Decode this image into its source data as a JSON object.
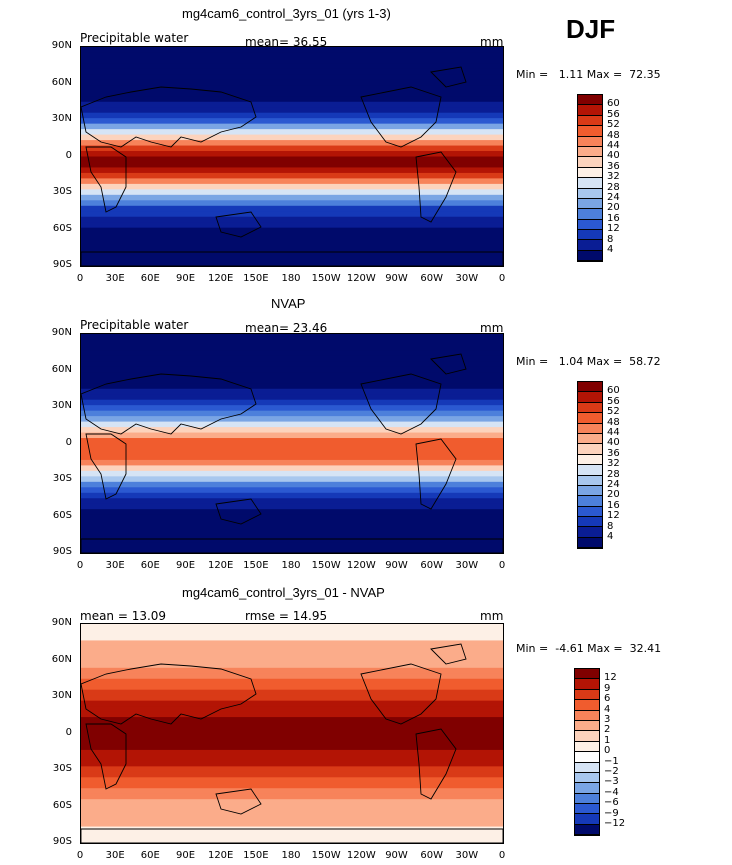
{
  "figure": {
    "season": "DJF"
  },
  "panels": [
    {
      "title": "mg4cam6_control_3yrs_01 (yrs 1-3)",
      "variable": "Precipitable water",
      "stat_text": "mean=  36.55",
      "units": "mm",
      "minmax": "Min =   1.11 Max =  72.35"
    },
    {
      "title": "NVAP",
      "variable": "Precipitable water",
      "stat_text": "mean=  23.46",
      "units": "mm",
      "minmax": "Min =   1.04 Max =  58.72"
    },
    {
      "title": "mg4cam6_control_3yrs_01 - NVAP",
      "variable": "mean =  13.09",
      "stat_text": "rmse =  14.95",
      "units": "mm",
      "minmax": "Min =  -4.61 Max =  32.41"
    }
  ],
  "chart_data": [
    {
      "type": "heatmap",
      "title": "mg4cam6_control_3yrs_01 (yrs 1-3)",
      "subtitle": "Precipitable water",
      "mean": 36.55,
      "min": 1.11,
      "max": 72.35,
      "units": "mm",
      "x_tick_labels": [
        "0",
        "30E",
        "60E",
        "90E",
        "120E",
        "150E",
        "180",
        "150W",
        "120W",
        "90W",
        "60W",
        "30W",
        "0"
      ],
      "y_tick_labels": [
        "90N",
        "60N",
        "30N",
        "0",
        "30S",
        "60S",
        "90S"
      ],
      "colorbar_levels": [
        "60",
        "56",
        "52",
        "48",
        "44",
        "40",
        "36",
        "32",
        "28",
        "24",
        "20",
        "16",
        "12",
        "8",
        "4"
      ],
      "colorbar_colors": [
        "#800000",
        "#b31405",
        "#d93a17",
        "#f05c2e",
        "#f7835a",
        "#fbac8a",
        "#fcd3bd",
        "#fdf0e6",
        "#d6e4f5",
        "#a8c7ee",
        "#7aa5e4",
        "#4d80db",
        "#2b59d1",
        "#1539b8",
        "#0a1d94",
        "#000a6b"
      ]
    },
    {
      "type": "heatmap",
      "title": "NVAP",
      "subtitle": "Precipitable water",
      "mean": 23.46,
      "min": 1.04,
      "max": 58.72,
      "units": "mm",
      "x_tick_labels": [
        "0",
        "30E",
        "60E",
        "90E",
        "120E",
        "150E",
        "180",
        "150W",
        "120W",
        "90W",
        "60W",
        "30W",
        "0"
      ],
      "y_tick_labels": [
        "90N",
        "60N",
        "30N",
        "0",
        "30S",
        "60S",
        "90S"
      ],
      "colorbar_levels": [
        "60",
        "56",
        "52",
        "48",
        "44",
        "40",
        "36",
        "32",
        "28",
        "24",
        "20",
        "16",
        "12",
        "8",
        "4"
      ],
      "colorbar_colors": [
        "#800000",
        "#b31405",
        "#d93a17",
        "#f05c2e",
        "#f7835a",
        "#fbac8a",
        "#fcd3bd",
        "#fdf0e6",
        "#d6e4f5",
        "#a8c7ee",
        "#7aa5e4",
        "#4d80db",
        "#2b59d1",
        "#1539b8",
        "#0a1d94",
        "#000a6b"
      ]
    },
    {
      "type": "heatmap",
      "title": "mg4cam6_control_3yrs_01 - NVAP",
      "mean": 13.09,
      "rmse": 14.95,
      "min": -4.61,
      "max": 32.41,
      "units": "mm",
      "x_tick_labels": [
        "0",
        "30E",
        "60E",
        "90E",
        "120E",
        "150E",
        "180",
        "150W",
        "120W",
        "90W",
        "60W",
        "30W",
        "0"
      ],
      "y_tick_labels": [
        "90N",
        "60N",
        "30N",
        "0",
        "30S",
        "60S",
        "90S"
      ],
      "colorbar_levels": [
        "12",
        "9",
        "6",
        "4",
        "3",
        "2",
        "1",
        "0",
        "−1",
        "−2",
        "−3",
        "−4",
        "−6",
        "−9",
        "−12"
      ],
      "colorbar_colors": [
        "#800000",
        "#b31405",
        "#d93a17",
        "#f05c2e",
        "#f7835a",
        "#fbac8a",
        "#fcd3bd",
        "#fdf0e6",
        "#ffffff",
        "#d6e4f5",
        "#a8c7ee",
        "#7aa5e4",
        "#4d80db",
        "#2b59d1",
        "#1539b8",
        "#000a6b"
      ]
    }
  ]
}
